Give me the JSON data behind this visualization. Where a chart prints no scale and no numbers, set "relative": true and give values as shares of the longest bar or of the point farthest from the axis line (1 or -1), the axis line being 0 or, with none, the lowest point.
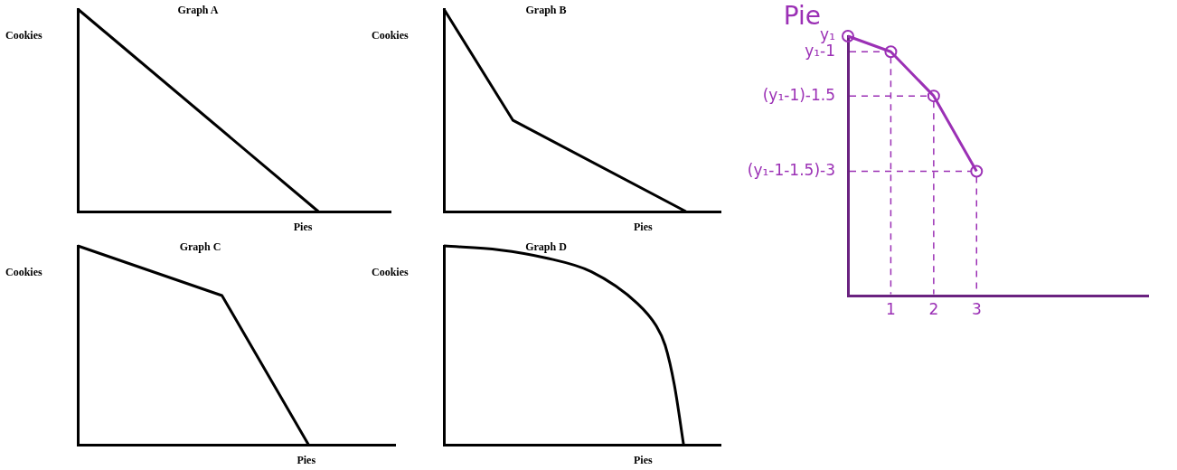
{
  "chart_data": [
    {
      "type": "line",
      "title": "Graph A",
      "xlabel": "Pies",
      "ylabel": "Cookies",
      "relative": true,
      "tick_labels": false,
      "color": "#000000",
      "categories": [
        null,
        null,
        null,
        null,
        null,
        null,
        null,
        null,
        null,
        null,
        null,
        null,
        null,
        null
      ],
      "values": [
        1,
        null,
        null,
        null,
        null,
        null,
        null,
        null,
        null,
        null,
        0,
        null,
        null,
        null
      ]
    },
    {
      "type": "line",
      "title": "Graph B",
      "xlabel": "Pies",
      "ylabel": "Cookies",
      "relative": true,
      "tick_labels": false,
      "color": "#000000",
      "categories": [
        null,
        null,
        null,
        null,
        null,
        null,
        null,
        null,
        null
      ],
      "values": [
        1,
        null,
        0.45,
        null,
        null,
        null,
        null,
        0,
        null
      ]
    },
    {
      "type": "line",
      "title": "Graph C",
      "xlabel": "Pies",
      "ylabel": "Cookies",
      "relative": true,
      "tick_labels": false,
      "color": "#000000",
      "categories": [
        null,
        null,
        null,
        null,
        null,
        null,
        null,
        null,
        null,
        null,
        null,
        null
      ],
      "values": [
        1,
        null,
        null,
        null,
        null,
        0.75,
        null,
        null,
        0,
        null,
        null,
        null
      ]
    },
    {
      "type": "line",
      "title": "Graph D",
      "xlabel": "Pies",
      "ylabel": "Cookies",
      "relative": true,
      "tick_labels": false,
      "color": "#000000",
      "categories": [
        null,
        null,
        null,
        null,
        null,
        null,
        null,
        null,
        null,
        null,
        null,
        null,
        null,
        null,
        null,
        null,
        null,
        null,
        null,
        null,
        null,
        null,
        null,
        null,
        null,
        null,
        null,
        null,
        null,
        null,
        null
      ],
      "values": [
        1,
        null,
        null,
        null,
        null,
        null,
        0.98,
        null,
        null,
        null,
        null,
        0.94,
        null,
        null,
        null,
        null,
        0.87,
        null,
        null,
        null,
        null,
        0.71,
        null,
        0.6,
        0.5,
        0.3,
        0,
        null,
        null,
        null,
        null
      ]
    },
    {
      "type": "line",
      "ylabel": "Pie",
      "relative": true,
      "tick_labels": "x",
      "marker": "circle",
      "color": "#9b30b5",
      "x": [
        0,
        1,
        2,
        3
      ],
      "xlim": [
        0,
        7
      ],
      "xticks": [
        1,
        2,
        3
      ],
      "values": [
        1,
        0.94,
        0.77,
        0.48
      ],
      "annotations": [
        "y₁",
        "y₁-1",
        "(y₁-1)-1.5",
        "(y₁-1-1.5)-3"
      ]
    }
  ]
}
